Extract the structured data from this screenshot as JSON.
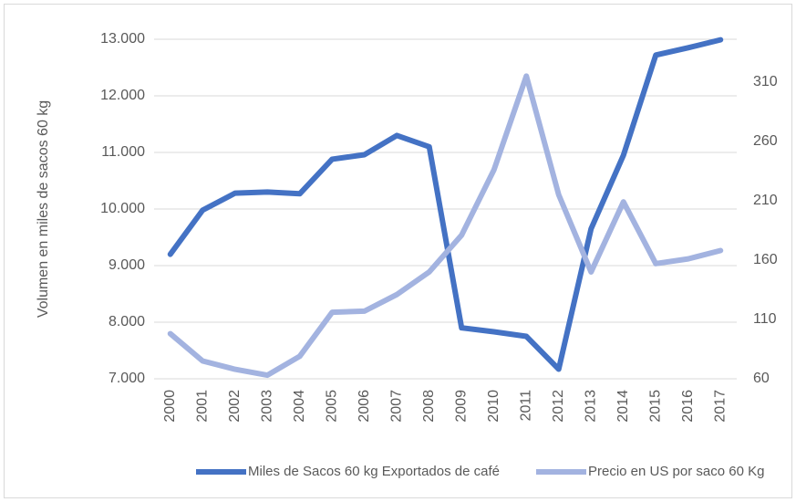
{
  "chart_data": {
    "type": "line",
    "y_label": "Volumen en miles de sacos 60 kg",
    "categories": [
      "2000",
      "2001",
      "2002",
      "2003",
      "2004",
      "2005",
      "2006",
      "2007",
      "2008",
      "2009",
      "2010",
      "2011",
      "2012",
      "2013",
      "2014",
      "2015",
      "2016",
      "2017"
    ],
    "series": [
      {
        "name": "Miles de Sacos 60 kg Exportados de café",
        "color": "#4472c4",
        "values": [
          9200,
          9980,
          10280,
          10300,
          10270,
          10880,
          10960,
          11300,
          11100,
          7900,
          7830,
          7750,
          7170,
          9650,
          10950,
          12720,
          12850,
          12990
        ]
      },
      {
        "name": "Precio en US por saco 60 Kg",
        "color": "#a3b3e0",
        "axis": "y2",
        "values": [
          98,
          75,
          68,
          63,
          79,
          116,
          117,
          131,
          150,
          181,
          236,
          315,
          215,
          150,
          209,
          157,
          161,
          168
        ]
      }
    ],
    "ylim": [
      7000,
      13000
    ],
    "yticks": [
      {
        "value": 7000,
        "label": "7.000"
      },
      {
        "value": 8000,
        "label": "8.000"
      },
      {
        "value": 9000,
        "label": "9.000"
      },
      {
        "value": 10000,
        "label": "10.000"
      },
      {
        "value": 11000,
        "label": "11.000"
      },
      {
        "value": 12000,
        "label": "12.000"
      },
      {
        "value": 13000,
        "label": "13.000"
      }
    ],
    "y2lim": [
      60,
      346
    ],
    "y2ticks": [
      60,
      110,
      160,
      210,
      260,
      310
    ],
    "grid": true,
    "legend": "bottom"
  }
}
